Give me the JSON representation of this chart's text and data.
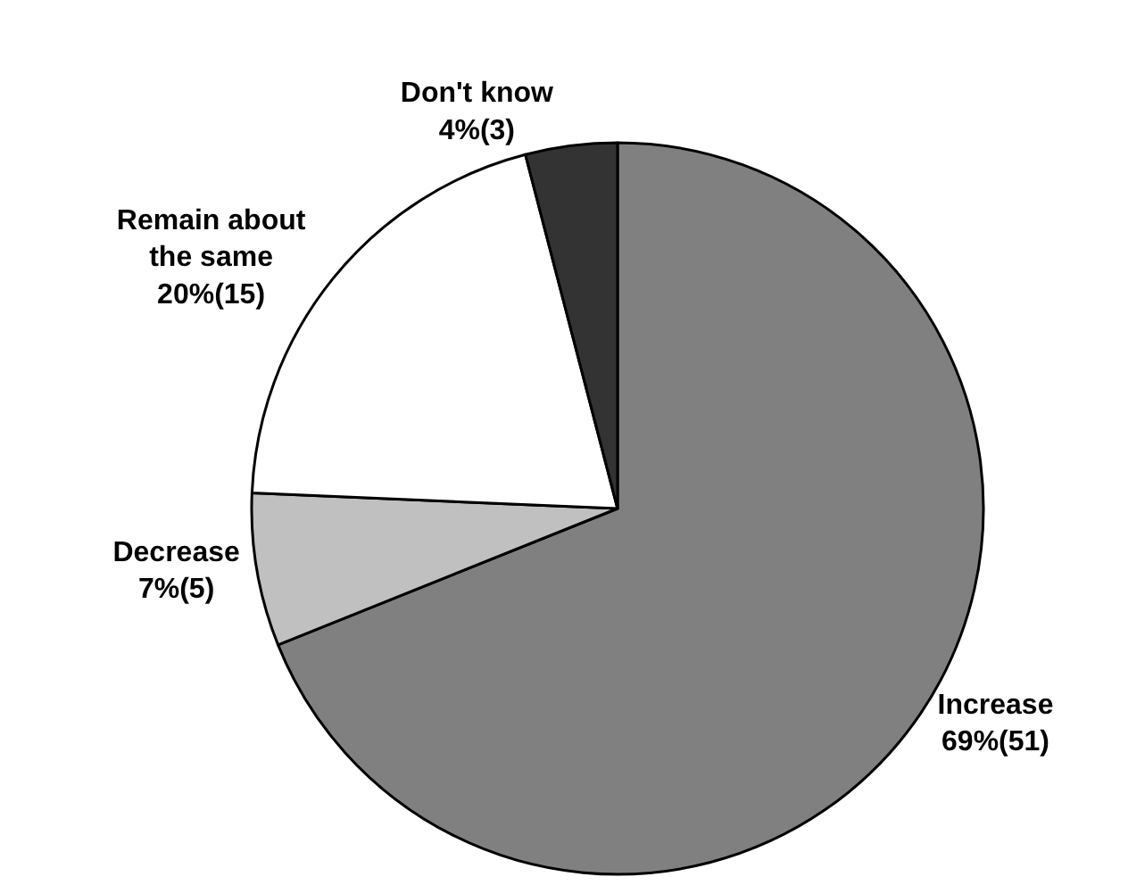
{
  "chart_data": {
    "type": "pie",
    "categories": [
      "Increase",
      "Decrease",
      "Remain about the same",
      "Don't know"
    ],
    "values": [
      51,
      5,
      15,
      3
    ],
    "value_labels": [
      "69%(51)",
      "7%(5)",
      "20%(15)",
      "4%(3)"
    ],
    "colors": [
      "#808080",
      "#c0c0c0",
      "#ffffff",
      "#333333"
    ],
    "legend": false
  }
}
